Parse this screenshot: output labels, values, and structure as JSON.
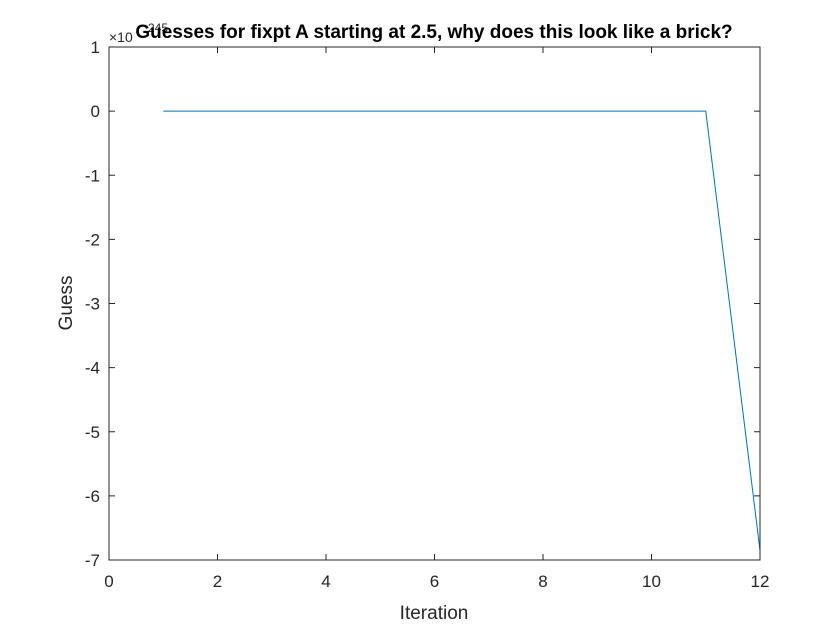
{
  "chart_data": {
    "type": "line",
    "title": "Guesses for fixpt A starting at 2.5, why does this look like a brick?",
    "xlabel": "Iteration",
    "ylabel": "Guess",
    "y_exponent_label": "×10",
    "y_exponent_power": "245",
    "xlim": [
      0,
      12
    ],
    "ylim": [
      -7,
      1
    ],
    "xticks": [
      0,
      2,
      4,
      6,
      8,
      10,
      12
    ],
    "yticks": [
      1,
      0,
      -1,
      -2,
      -3,
      -4,
      -5,
      -6,
      -7
    ],
    "grid": false,
    "box": true,
    "series": [
      {
        "color": "#0072BD",
        "x": [
          1,
          2,
          3,
          4,
          5,
          6,
          7,
          8,
          9,
          10,
          11,
          12
        ],
        "y": [
          0,
          0,
          0,
          0,
          0,
          0,
          0,
          0,
          0,
          0,
          0,
          -6.85
        ]
      }
    ]
  }
}
